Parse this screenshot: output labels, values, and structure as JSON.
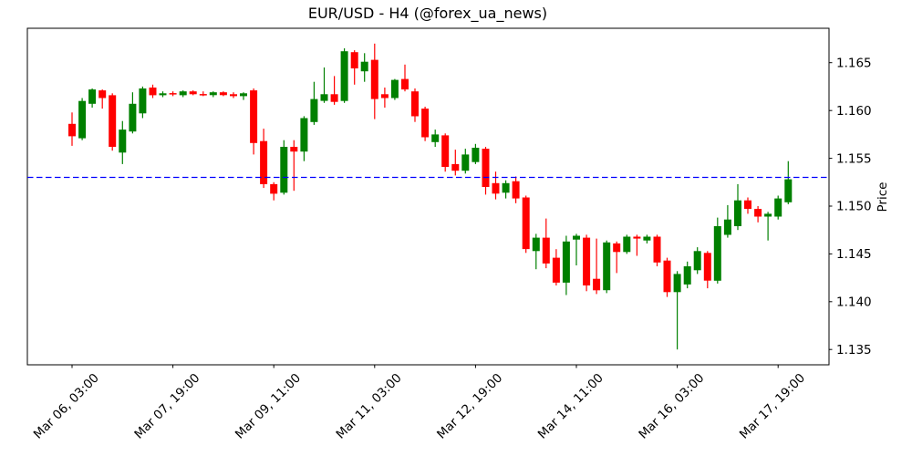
{
  "title": "EUR/USD - H4 (@forex_ua_news)",
  "chart_data": {
    "type": "candlestick",
    "title": "EUR/USD - H4 (@forex_ua_news)",
    "xlabel": "",
    "ylabel": "Price",
    "legend": "none",
    "grid": false,
    "ylim": [
      1.1334,
      1.1686
    ],
    "y_ticks": [
      1.165,
      1.16,
      1.155,
      1.15,
      1.145,
      1.14,
      1.135
    ],
    "y_tick_format": "3-decimals",
    "x_ticks": [
      {
        "label": "Mar 06, 03:00",
        "candle_index": 0
      },
      {
        "label": "Mar 07, 19:00",
        "candle_index": 10
      },
      {
        "label": "Mar 09, 11:00",
        "candle_index": 20
      },
      {
        "label": "Mar 11, 03:00",
        "candle_index": 30
      },
      {
        "label": "Mar 12, 19:00",
        "candle_index": 40
      },
      {
        "label": "Mar 14, 11:00",
        "candle_index": 50
      },
      {
        "label": "Mar 16, 03:00",
        "candle_index": 60
      },
      {
        "label": "Mar 17, 19:00",
        "candle_index": 70
      }
    ],
    "hline": {
      "price": 1.153,
      "color": "#0000ff",
      "style": "dashed"
    },
    "colors": {
      "up": "#008000",
      "down": "#ff0000",
      "text": "#000000",
      "background": "#ffffff"
    },
    "candles_format": [
      "open",
      "high",
      "low",
      "close"
    ],
    "candles": [
      [
        1.1586,
        1.1598,
        1.1563,
        1.1573
      ],
      [
        1.1571,
        1.1613,
        1.1569,
        1.161
      ],
      [
        1.1607,
        1.1623,
        1.1603,
        1.1622
      ],
      [
        1.1621,
        1.1622,
        1.1602,
        1.1613
      ],
      [
        1.1616,
        1.1618,
        1.1558,
        1.1562
      ],
      [
        1.1556,
        1.1589,
        1.1544,
        1.158
      ],
      [
        1.1578,
        1.1619,
        1.1576,
        1.1607
      ],
      [
        1.1597,
        1.1625,
        1.1592,
        1.1623
      ],
      [
        1.1624,
        1.1627,
        1.1613,
        1.1616
      ],
      [
        1.1616,
        1.162,
        1.1614,
        1.1618
      ],
      [
        1.1618,
        1.162,
        1.1615,
        1.1617
      ],
      [
        1.1616,
        1.1621,
        1.1614,
        1.162
      ],
      [
        1.162,
        1.1621,
        1.1616,
        1.1617
      ],
      [
        1.1617,
        1.162,
        1.1615,
        1.1616
      ],
      [
        1.1616,
        1.162,
        1.1614,
        1.1619
      ],
      [
        1.1619,
        1.162,
        1.1615,
        1.1616
      ],
      [
        1.1617,
        1.1619,
        1.1613,
        1.1615
      ],
      [
        1.1615,
        1.1619,
        1.1611,
        1.1618
      ],
      [
        1.1621,
        1.1623,
        1.1554,
        1.1566
      ],
      [
        1.1568,
        1.1581,
        1.1519,
        1.1523
      ],
      [
        1.1523,
        1.1525,
        1.1506,
        1.1513
      ],
      [
        1.1514,
        1.1569,
        1.1512,
        1.1562
      ],
      [
        1.1562,
        1.1569,
        1.1516,
        1.1557
      ],
      [
        1.1557,
        1.1594,
        1.1547,
        1.1592
      ],
      [
        1.1588,
        1.163,
        1.1585,
        1.1612
      ],
      [
        1.161,
        1.1645,
        1.1608,
        1.1617
      ],
      [
        1.1617,
        1.1636,
        1.1606,
        1.1609
      ],
      [
        1.161,
        1.1665,
        1.1608,
        1.1662
      ],
      [
        1.1661,
        1.1663,
        1.1627,
        1.1644
      ],
      [
        1.1641,
        1.166,
        1.163,
        1.1651
      ],
      [
        1.1653,
        1.167,
        1.1591,
        1.1612
      ],
      [
        1.1617,
        1.1624,
        1.1603,
        1.1613
      ],
      [
        1.1613,
        1.1633,
        1.1611,
        1.1632
      ],
      [
        1.1633,
        1.1648,
        1.162,
        1.1622
      ],
      [
        1.162,
        1.1623,
        1.1588,
        1.1594
      ],
      [
        1.1602,
        1.1604,
        1.1568,
        1.1572
      ],
      [
        1.1567,
        1.158,
        1.1562,
        1.1575
      ],
      [
        1.1574,
        1.1576,
        1.1536,
        1.1541
      ],
      [
        1.1544,
        1.1559,
        1.1532,
        1.1537
      ],
      [
        1.1537,
        1.156,
        1.1534,
        1.1554
      ],
      [
        1.1546,
        1.1565,
        1.1544,
        1.1561
      ],
      [
        1.156,
        1.1562,
        1.1512,
        1.152
      ],
      [
        1.1524,
        1.1536,
        1.1507,
        1.1513
      ],
      [
        1.1514,
        1.1527,
        1.1508,
        1.1524
      ],
      [
        1.1526,
        1.1531,
        1.1503,
        1.1508
      ],
      [
        1.1509,
        1.1511,
        1.1451,
        1.1455
      ],
      [
        1.1453,
        1.1471,
        1.1434,
        1.1467
      ],
      [
        1.1467,
        1.1487,
        1.1435,
        1.144
      ],
      [
        1.1446,
        1.1455,
        1.1417,
        1.142
      ],
      [
        1.142,
        1.1469,
        1.1407,
        1.1463
      ],
      [
        1.1465,
        1.1471,
        1.1438,
        1.1469
      ],
      [
        1.1467,
        1.147,
        1.1411,
        1.1417
      ],
      [
        1.1424,
        1.1466,
        1.1408,
        1.1412
      ],
      [
        1.1412,
        1.1464,
        1.1409,
        1.1462
      ],
      [
        1.1461,
        1.1463,
        1.143,
        1.1452
      ],
      [
        1.1452,
        1.147,
        1.145,
        1.1468
      ],
      [
        1.1468,
        1.147,
        1.1448,
        1.1466
      ],
      [
        1.1464,
        1.147,
        1.1461,
        1.1468
      ],
      [
        1.1468,
        1.147,
        1.1437,
        1.1441
      ],
      [
        1.1443,
        1.1446,
        1.1405,
        1.141
      ],
      [
        1.141,
        1.1432,
        1.135,
        1.1429
      ],
      [
        1.1418,
        1.1442,
        1.1414,
        1.1437
      ],
      [
        1.1433,
        1.1457,
        1.1429,
        1.1453
      ],
      [
        1.1451,
        1.1453,
        1.1414,
        1.1422
      ],
      [
        1.1422,
        1.1488,
        1.1419,
        1.1479
      ],
      [
        1.147,
        1.1501,
        1.1467,
        1.1486
      ],
      [
        1.1479,
        1.1523,
        1.1475,
        1.1506
      ],
      [
        1.1506,
        1.1509,
        1.1492,
        1.1497
      ],
      [
        1.1497,
        1.15,
        1.1483,
        1.1489
      ],
      [
        1.1489,
        1.1494,
        1.1464,
        1.1492
      ],
      [
        1.1489,
        1.1511,
        1.1486,
        1.1508
      ],
      [
        1.1504,
        1.1547,
        1.1502,
        1.1528
      ]
    ]
  }
}
